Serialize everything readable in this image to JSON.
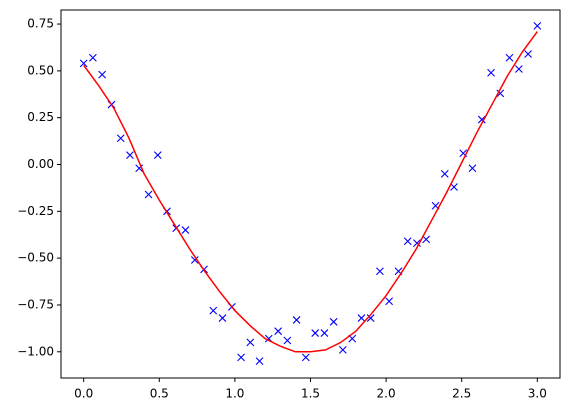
{
  "chart_data": {
    "type": "scatter",
    "xlim": [
      -0.15,
      3.15
    ],
    "ylim": [
      -1.14,
      0.825
    ],
    "xticks": [
      {
        "value": 0,
        "label": "0.0"
      },
      {
        "value": 0.5,
        "label": "0.5"
      },
      {
        "value": 1,
        "label": "1.0"
      },
      {
        "value": 1.5,
        "label": "1.5"
      },
      {
        "value": 2,
        "label": "2.0"
      },
      {
        "value": 2.5,
        "label": "2.5"
      },
      {
        "value": 3,
        "label": "3.0"
      }
    ],
    "yticks": [
      {
        "value": -1,
        "label": "−1.00"
      },
      {
        "value": -0.75,
        "label": "−0.75"
      },
      {
        "value": -0.5,
        "label": "−0.50"
      },
      {
        "value": -0.25,
        "label": "−0.25"
      },
      {
        "value": 0,
        "label": "0.00"
      },
      {
        "value": 0.25,
        "label": "0.25"
      },
      {
        "value": 0.5,
        "label": "0.50"
      },
      {
        "value": 0.75,
        "label": "0.75"
      }
    ],
    "series": [
      {
        "type": "scatter",
        "marker": "x",
        "color": "#0000ff",
        "x": [
          0,
          0.061,
          0.122,
          0.184,
          0.245,
          0.306,
          0.367,
          0.429,
          0.49,
          0.551,
          0.612,
          0.673,
          0.735,
          0.796,
          0.857,
          0.918,
          0.98,
          1.041,
          1.102,
          1.163,
          1.224,
          1.286,
          1.347,
          1.408,
          1.469,
          1.531,
          1.592,
          1.653,
          1.714,
          1.776,
          1.837,
          1.898,
          1.959,
          2.02,
          2.082,
          2.143,
          2.204,
          2.265,
          2.327,
          2.388,
          2.449,
          2.51,
          2.571,
          2.633,
          2.694,
          2.755,
          2.816,
          2.878,
          2.939,
          3.0
        ],
        "values": [
          0.54,
          0.57,
          0.48,
          0.32,
          0.14,
          0.05,
          -0.02,
          -0.16,
          0.05,
          -0.25,
          -0.34,
          -0.35,
          -0.51,
          -0.56,
          -0.78,
          -0.82,
          -0.76,
          -1.03,
          -0.95,
          -1.05,
          -0.93,
          -0.89,
          -0.94,
          -0.83,
          -1.03,
          -0.9,
          -0.9,
          -0.84,
          -0.99,
          -0.93,
          -0.82,
          -0.82,
          -0.57,
          -0.73,
          -0.57,
          -0.41,
          -0.42,
          -0.4,
          -0.22,
          -0.05,
          -0.12,
          0.06,
          -0.02,
          0.24,
          0.49,
          0.38,
          0.57,
          0.51,
          0.59,
          0.74
        ]
      },
      {
        "type": "line",
        "color": "#ff0000",
        "x": [
          0,
          0.1,
          0.2,
          0.3,
          0.4,
          0.5,
          0.6,
          0.7,
          0.8,
          0.9,
          1.0,
          1.1,
          1.2,
          1.3,
          1.4,
          1.5,
          1.6,
          1.7,
          1.8,
          1.9,
          2.0,
          2.1,
          2.2,
          2.3,
          2.4,
          2.5,
          2.6,
          2.7,
          2.8,
          2.9,
          3.0
        ],
        "values": [
          0.53,
          0.42,
          0.3,
          0.14,
          -0.05,
          -0.19,
          -0.32,
          -0.45,
          -0.57,
          -0.68,
          -0.78,
          -0.86,
          -0.93,
          -0.97,
          -1.0,
          -1.0,
          -0.99,
          -0.95,
          -0.89,
          -0.8,
          -0.7,
          -0.58,
          -0.45,
          -0.3,
          -0.15,
          0.01,
          0.17,
          0.32,
          0.47,
          0.6,
          0.71
        ]
      }
    ]
  }
}
